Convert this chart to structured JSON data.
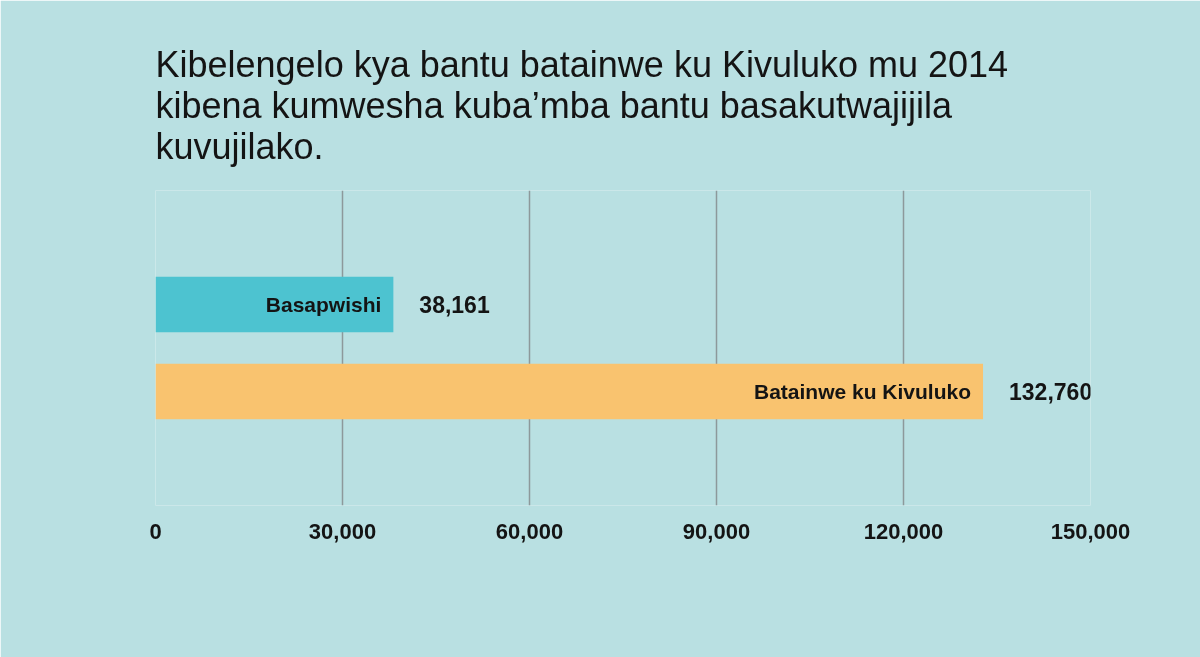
{
  "chart_data": {
    "type": "bar",
    "orientation": "horizontal",
    "title": "Kibelengelo kya bantu batainwe ku Kivuluko mu 2014 kibena kumwesha kuba’mba bantu basakutwajijila kuvujilako.",
    "categories": [
      "Basapwishi",
      "Batainwe ku Kivuluko"
    ],
    "values": [
      38161,
      132760
    ],
    "colors": [
      "#4dc3d0",
      "#f9c36f"
    ],
    "value_labels": [
      "38,161",
      "132,760"
    ],
    "xlim": [
      0,
      150000
    ],
    "xticks": [
      0,
      {
        "value": 30000,
        "label": "30,000"
      },
      {
        "value": 60000,
        "label": "60,000"
      },
      {
        "value": 90000,
        "label": "90,000"
      },
      {
        "value": 120000,
        "label": "120,000"
      },
      {
        "value": 150000,
        "label": "150,000"
      }
    ],
    "grid": "x"
  }
}
